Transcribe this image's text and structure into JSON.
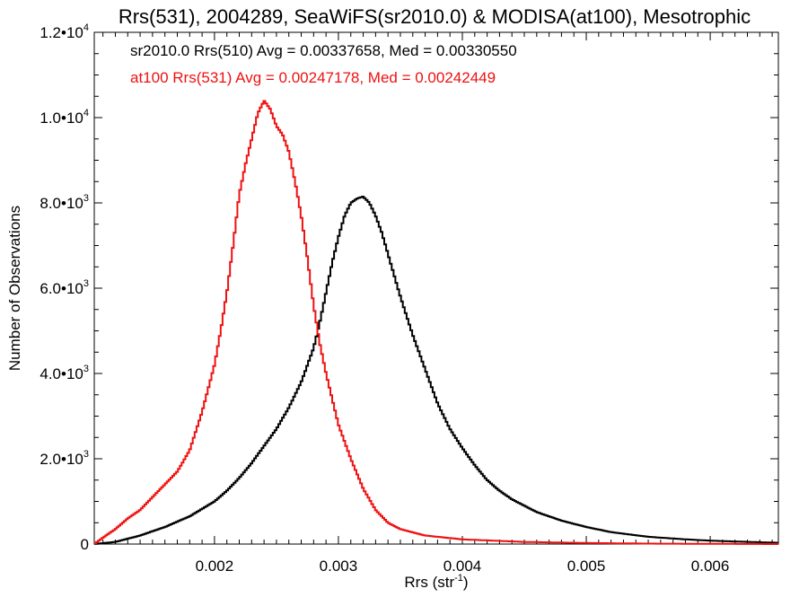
{
  "chart_data": {
    "type": "line",
    "step": true,
    "title": "Rrs(531), 2004289, SeaWiFS(sr2010.0) & MODISA(at100), Mesotrophic",
    "xlabel": "Rrs (str",
    "xlabel_sup": "-1",
    "xlabel_close": ")",
    "ylabel": "Number of Observations",
    "xlim": [
      0.00103,
      0.00655
    ],
    "ylim": [
      0,
      12000
    ],
    "x_ticks": [
      {
        "value": 0.002,
        "label": "0.002"
      },
      {
        "value": 0.003,
        "label": "0.003"
      },
      {
        "value": 0.004,
        "label": "0.004"
      },
      {
        "value": 0.005,
        "label": "0.005"
      },
      {
        "value": 0.006,
        "label": "0.006"
      }
    ],
    "y_ticks": [
      {
        "value": 0,
        "label": "0",
        "exp": ""
      },
      {
        "value": 2000,
        "label": "2.0•10",
        "exp": "3"
      },
      {
        "value": 4000,
        "label": "4.0•10",
        "exp": "3"
      },
      {
        "value": 6000,
        "label": "6.0•10",
        "exp": "3"
      },
      {
        "value": 8000,
        "label": "8.0•10",
        "exp": "3"
      },
      {
        "value": 10000,
        "label": "1.0•10",
        "exp": "4"
      },
      {
        "value": 12000,
        "label": "1.2•10",
        "exp": "4"
      }
    ],
    "legend": [
      {
        "text": "sr2010.0 Rrs(510) Avg = 0.00337658, Med = 0.00330550",
        "color": "#000000"
      },
      {
        "text": "at100 Rrs(531) Avg = 0.00247178, Med = 0.00242449",
        "color": "#ee1111"
      }
    ],
    "series": [
      {
        "color": "#000000",
        "x": [
          0.00103,
          0.0012,
          0.0014,
          0.0016,
          0.0018,
          0.002,
          0.0021,
          0.0022,
          0.0023,
          0.0024,
          0.0025,
          0.0026,
          0.0027,
          0.0028,
          0.00285,
          0.0029,
          0.00295,
          0.003,
          0.00305,
          0.0031,
          0.00315,
          0.0032,
          0.00325,
          0.0033,
          0.00335,
          0.0034,
          0.00345,
          0.0035,
          0.0036,
          0.0037,
          0.0038,
          0.0039,
          0.004,
          0.0041,
          0.0042,
          0.0043,
          0.0044,
          0.0045,
          0.0046,
          0.0048,
          0.005,
          0.0052,
          0.0055,
          0.0058,
          0.006,
          0.0062,
          0.00655
        ],
        "y": [
          0,
          50,
          200,
          400,
          650,
          1000,
          1250,
          1550,
          1900,
          2300,
          2700,
          3200,
          3800,
          4600,
          5200,
          5900,
          6600,
          7200,
          7700,
          8000,
          8100,
          8150,
          8000,
          7700,
          7300,
          6800,
          6300,
          5800,
          4900,
          4100,
          3300,
          2700,
          2250,
          1850,
          1500,
          1250,
          1050,
          900,
          750,
          550,
          400,
          280,
          170,
          110,
          80,
          60,
          30
        ]
      },
      {
        "color": "#ee1111",
        "x": [
          0.00103,
          0.0011,
          0.0012,
          0.0013,
          0.0014,
          0.0015,
          0.0016,
          0.0017,
          0.0018,
          0.0019,
          0.002,
          0.00205,
          0.0021,
          0.00215,
          0.0022,
          0.00225,
          0.0023,
          0.00235,
          0.0024,
          0.00245,
          0.0025,
          0.00255,
          0.0026,
          0.00265,
          0.0027,
          0.00275,
          0.0028,
          0.00285,
          0.0029,
          0.00295,
          0.003,
          0.0031,
          0.0032,
          0.0033,
          0.0034,
          0.0035,
          0.0037,
          0.004,
          0.0045,
          0.005,
          0.0055,
          0.006,
          0.00655
        ],
        "y": [
          0,
          150,
          350,
          600,
          800,
          1100,
          1400,
          1700,
          2200,
          3100,
          4200,
          5000,
          5900,
          7000,
          8200,
          8900,
          9500,
          10100,
          10400,
          10200,
          9800,
          9600,
          9200,
          8500,
          7700,
          6700,
          5600,
          4700,
          4000,
          3400,
          2800,
          2000,
          1300,
          800,
          500,
          350,
          200,
          110,
          50,
          25,
          10,
          5,
          0
        ]
      }
    ]
  }
}
